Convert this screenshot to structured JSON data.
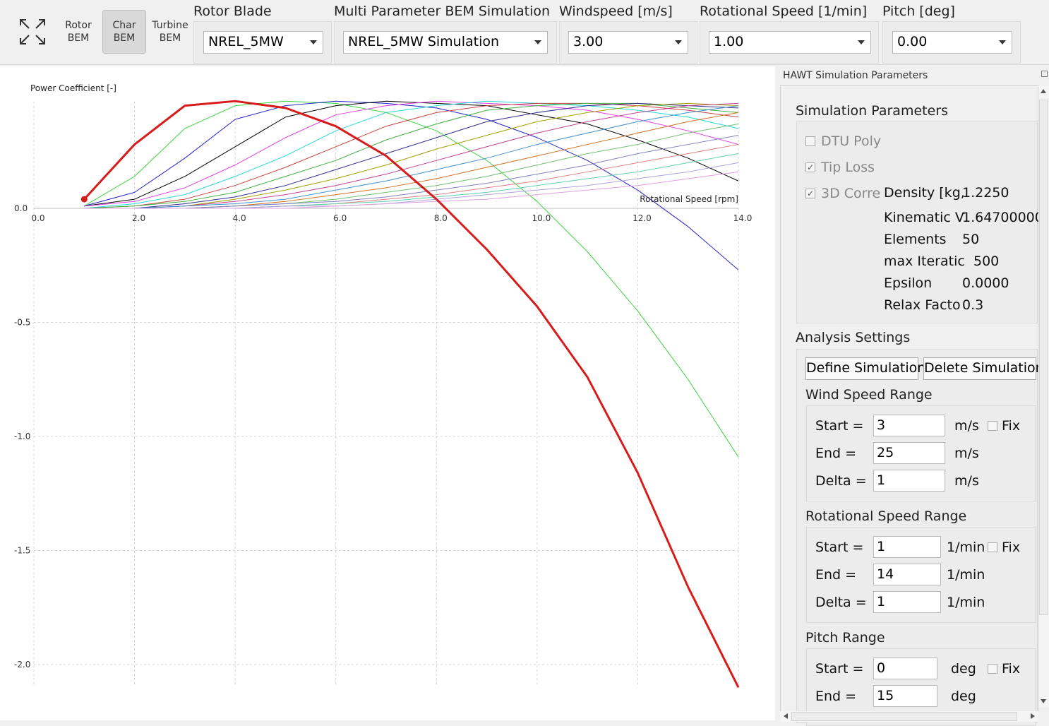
{
  "toolbar": {
    "icons": [
      {
        "name": "expand-icon",
        "line1": "",
        "line2": ""
      },
      {
        "name": "rotor-bem-icon",
        "line1": "Rotor",
        "line2": "BEM"
      },
      {
        "name": "char-bem-icon",
        "line1": "Char",
        "line2": "BEM"
      },
      {
        "name": "turbine-bem-icon",
        "line1": "Turbine",
        "line2": "BEM"
      }
    ],
    "rotor_blade": {
      "label": "Rotor Blade",
      "value": "NREL_5MW"
    },
    "simulation": {
      "label": "Multi Parameter BEM Simulation",
      "value": "NREL_5MW Simulation"
    },
    "windspeed": {
      "label": "Windspeed [m/s]",
      "value": "3.00"
    },
    "rot_speed": {
      "label": "Rotational Speed [1/min]",
      "value": "1.00"
    },
    "pitch": {
      "label": "Pitch [deg]",
      "value": "0.00"
    }
  },
  "panel": {
    "title": "HAWT Simulation Parameters",
    "sim_params": {
      "title": "Simulation Parameters",
      "dtu_poly": {
        "label": "DTU Poly",
        "checked": false
      },
      "tip_loss": {
        "label": "Tip Loss",
        "checked": true
      },
      "corr_3d": {
        "label": "3D Corre",
        "checked": true
      },
      "rows": [
        {
          "key": "Density [kg,",
          "value": "1.2250"
        },
        {
          "key": "Kinematic V",
          "value": "1.64700000"
        },
        {
          "key": "Elements",
          "value": "50"
        },
        {
          "key": "max Iteratic",
          "value": "500"
        },
        {
          "key": "Epsilon",
          "value": "0.0000"
        },
        {
          "key": "Relax Facto",
          "value": "0.3"
        }
      ]
    },
    "analysis": {
      "title": "Analysis Settings",
      "define_button": "Define Simulation",
      "delete_button": "Delete Simulation",
      "wind": {
        "title": "Wind Speed Range",
        "start_label": "Start =",
        "start": "3",
        "end_label": "End =",
        "end": "25",
        "delta_label": "Delta =",
        "delta": "1",
        "unit": "m/s",
        "fix": "Fix"
      },
      "rot": {
        "title": "Rotational Speed Range",
        "start_label": "Start =",
        "start": "1",
        "end_label": "End =",
        "end": "14",
        "delta_label": "Delta =",
        "delta": "1",
        "unit": "1/min",
        "fix": "Fix"
      },
      "pitch": {
        "title": "Pitch Range",
        "start_label": "Start =",
        "start": "0",
        "end_label": "End =",
        "end": "15",
        "unit": "deg",
        "fix": "Fix"
      }
    }
  },
  "chart_data": {
    "type": "line",
    "ylabel": "Power Coefficient [-]",
    "xlabel": "Rotational Speed [rpm]",
    "xlim": [
      0,
      14
    ],
    "ylim": [
      -2.1,
      0.5
    ],
    "x_ticks": [
      "0.0",
      "2.0",
      "4.0",
      "6.0",
      "8.0",
      "10.0",
      "12.0",
      "14.0"
    ],
    "y_ticks": [
      "0.0",
      "-0.5",
      "-1.0",
      "-1.5",
      "-2.0"
    ],
    "grid": true,
    "x": [
      1,
      2,
      3,
      4,
      5,
      6,
      7,
      8,
      9,
      10,
      11,
      12,
      13,
      14
    ],
    "highlight": {
      "color": "#d81b1b",
      "values": [
        0.04,
        0.28,
        0.45,
        0.47,
        0.44,
        0.36,
        0.23,
        0.04,
        -0.18,
        -0.43,
        -0.74,
        -1.16,
        -1.66,
        -2.1
      ]
    },
    "series": [
      {
        "color": "#3ad43a",
        "values": [
          0.01,
          0.14,
          0.35,
          0.45,
          0.47,
          0.46,
          0.42,
          0.34,
          0.21,
          0.03,
          -0.19,
          -0.45,
          -0.75,
          -1.09
        ]
      },
      {
        "color": "#2121c8",
        "values": [
          0.01,
          0.07,
          0.22,
          0.39,
          0.45,
          0.47,
          0.46,
          0.44,
          0.39,
          0.31,
          0.21,
          0.08,
          -0.08,
          -0.27
        ]
      },
      {
        "color": "#000000",
        "values": [
          0.01,
          0.04,
          0.14,
          0.27,
          0.4,
          0.45,
          0.47,
          0.46,
          0.45,
          0.41,
          0.37,
          0.3,
          0.22,
          0.12
        ]
      },
      {
        "color": "#e040e0",
        "values": [
          0.01,
          0.03,
          0.09,
          0.19,
          0.31,
          0.41,
          0.45,
          0.47,
          0.46,
          0.45,
          0.43,
          0.39,
          0.34,
          0.28
        ]
      },
      {
        "color": "#20d8d8",
        "values": [
          0.0,
          0.02,
          0.06,
          0.14,
          0.23,
          0.34,
          0.42,
          0.45,
          0.47,
          0.46,
          0.45,
          0.43,
          0.4,
          0.35
        ]
      },
      {
        "color": "#c84040",
        "values": [
          0.0,
          0.01,
          0.04,
          0.1,
          0.18,
          0.27,
          0.36,
          0.42,
          0.45,
          0.46,
          0.46,
          0.45,
          0.43,
          0.4
        ]
      },
      {
        "color": "#40b040",
        "values": [
          0.0,
          0.01,
          0.03,
          0.07,
          0.14,
          0.21,
          0.3,
          0.37,
          0.43,
          0.45,
          0.46,
          0.46,
          0.44,
          0.42
        ]
      },
      {
        "color": "#303090",
        "values": [
          0.0,
          0.0,
          0.02,
          0.05,
          0.1,
          0.17,
          0.24,
          0.31,
          0.38,
          0.42,
          0.45,
          0.46,
          0.45,
          0.44
        ]
      },
      {
        "color": "#a0a000",
        "values": [
          0.0,
          0.0,
          0.01,
          0.04,
          0.08,
          0.13,
          0.19,
          0.26,
          0.32,
          0.38,
          0.42,
          0.45,
          0.46,
          0.45
        ]
      },
      {
        "color": "#c04090",
        "values": [
          0.0,
          0.0,
          0.01,
          0.03,
          0.06,
          0.1,
          0.15,
          0.21,
          0.27,
          0.33,
          0.38,
          0.42,
          0.45,
          0.46
        ]
      },
      {
        "color": "#4090d0",
        "values": [
          0.0,
          0.0,
          0.01,
          0.02,
          0.04,
          0.08,
          0.12,
          0.17,
          0.22,
          0.28,
          0.33,
          0.38,
          0.42,
          0.45
        ]
      },
      {
        "color": "#d07020",
        "values": [
          0.0,
          0.0,
          0.0,
          0.01,
          0.03,
          0.06,
          0.09,
          0.13,
          0.18,
          0.23,
          0.28,
          0.33,
          0.38,
          0.42
        ]
      },
      {
        "color": "#70c070",
        "values": [
          0.0,
          0.0,
          0.0,
          0.01,
          0.02,
          0.04,
          0.07,
          0.1,
          0.14,
          0.19,
          0.24,
          0.28,
          0.33,
          0.37
        ]
      },
      {
        "color": "#8080c0",
        "values": [
          0.0,
          0.0,
          0.0,
          0.01,
          0.02,
          0.03,
          0.05,
          0.08,
          0.11,
          0.15,
          0.19,
          0.24,
          0.28,
          0.32
        ]
      },
      {
        "color": "#e08080",
        "values": [
          0.0,
          0.0,
          0.0,
          0.0,
          0.01,
          0.02,
          0.04,
          0.06,
          0.09,
          0.12,
          0.16,
          0.2,
          0.24,
          0.28
        ]
      },
      {
        "color": "#60d0b0",
        "values": [
          0.0,
          0.0,
          0.0,
          0.0,
          0.01,
          0.02,
          0.03,
          0.05,
          0.07,
          0.1,
          0.13,
          0.16,
          0.2,
          0.24
        ]
      },
      {
        "color": "#b0a0e0",
        "values": [
          0.0,
          0.0,
          0.0,
          0.0,
          0.01,
          0.01,
          0.02,
          0.04,
          0.06,
          0.08,
          0.1,
          0.13,
          0.16,
          0.2
        ]
      },
      {
        "color": "#e0a0e0",
        "values": [
          0.0,
          0.0,
          0.0,
          0.0,
          0.0,
          0.01,
          0.02,
          0.03,
          0.04,
          0.06,
          0.08,
          0.1,
          0.13,
          0.16
        ]
      }
    ]
  }
}
